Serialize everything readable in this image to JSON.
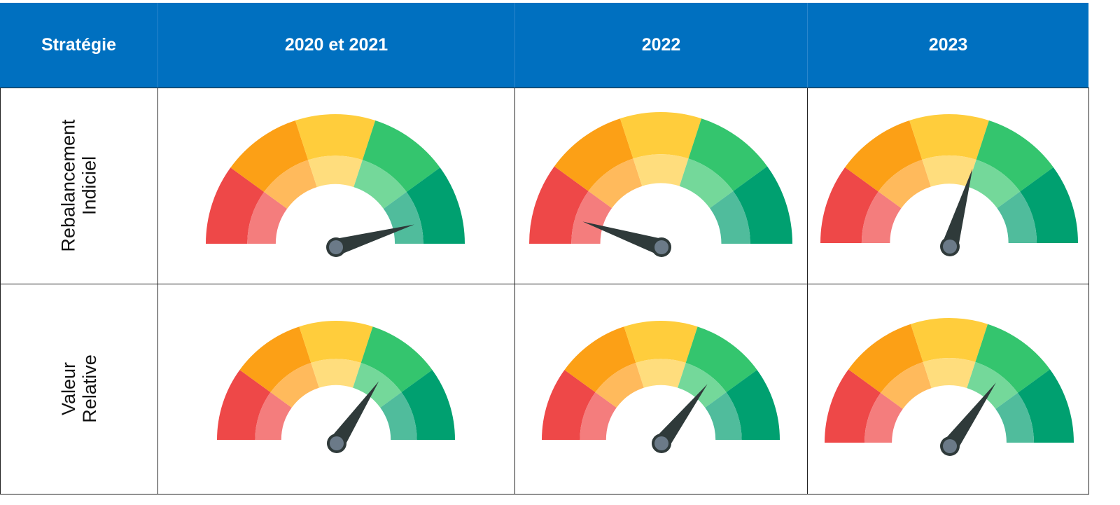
{
  "header": {
    "columns": [
      "Stratégie",
      "2020 et 2021",
      "2022",
      "2023"
    ],
    "background": "#0070c0"
  },
  "rows": [
    {
      "label": "Rebalancement\nIndiciel",
      "gauges": [
        0.91,
        0.1,
        0.59
      ]
    },
    {
      "label": "Valeur\nRelative",
      "gauges": [
        0.69,
        0.71,
        0.7
      ]
    }
  ],
  "gauge_colors": {
    "outer": [
      "#ee4848",
      "#fca016",
      "#ffcd3c",
      "#34c56e",
      "#00a070"
    ],
    "inner": [
      "#f47d7d",
      "#ffba5c",
      "#ffdd7d",
      "#74d89a",
      "#50bc9c"
    ],
    "needle": "#2f3a3a",
    "pivot": "#6b7a88"
  }
}
